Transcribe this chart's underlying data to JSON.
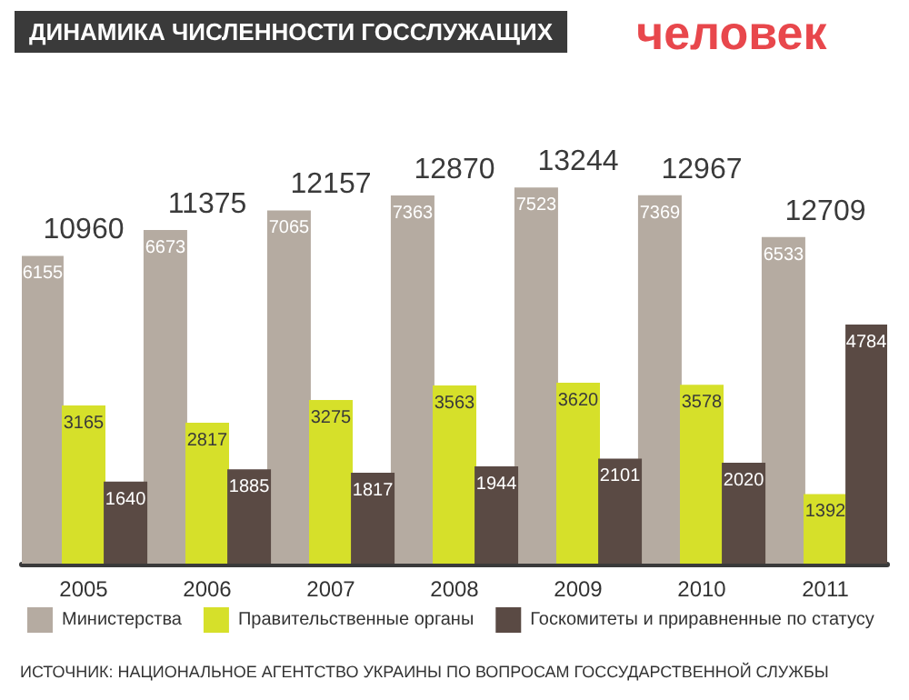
{
  "chart_data": {
    "type": "bar",
    "title": "ДИНАМИКА ЧИСЛЕННОСТИ ГОССЛУЖАЩИХ",
    "ylabel": "человек",
    "categories": [
      "2005",
      "2006",
      "2007",
      "2008",
      "2009",
      "2010",
      "2011"
    ],
    "series": [
      {
        "name": "Министерства",
        "color": "#b5aba1",
        "values": [
          6155,
          6673,
          7065,
          7363,
          7523,
          7369,
          6533
        ]
      },
      {
        "name": "Правительственные органы",
        "color": "#d6e02a",
        "values": [
          3165,
          2817,
          3275,
          3563,
          3620,
          3578,
          1392
        ]
      },
      {
        "name": "Госкомитеты и приравненные по статусу",
        "color": "#5a4a44",
        "values": [
          1640,
          1885,
          1817,
          1944,
          2101,
          2020,
          4784
        ]
      }
    ],
    "totals": [
      "10960",
      "11375",
      "12157",
      "12870",
      "13244",
      "12967",
      "12709"
    ],
    "data_labels": true,
    "legend": "bottom",
    "annotations": [
      "ИСТОЧНИК: НАЦИОНАЛЬНОЕ АГЕНТСТВО УКРАИНЫ ПО ВОПРОСАМ ГОССУДАРСТВЕННОЙ СЛУЖБЫ"
    ]
  }
}
